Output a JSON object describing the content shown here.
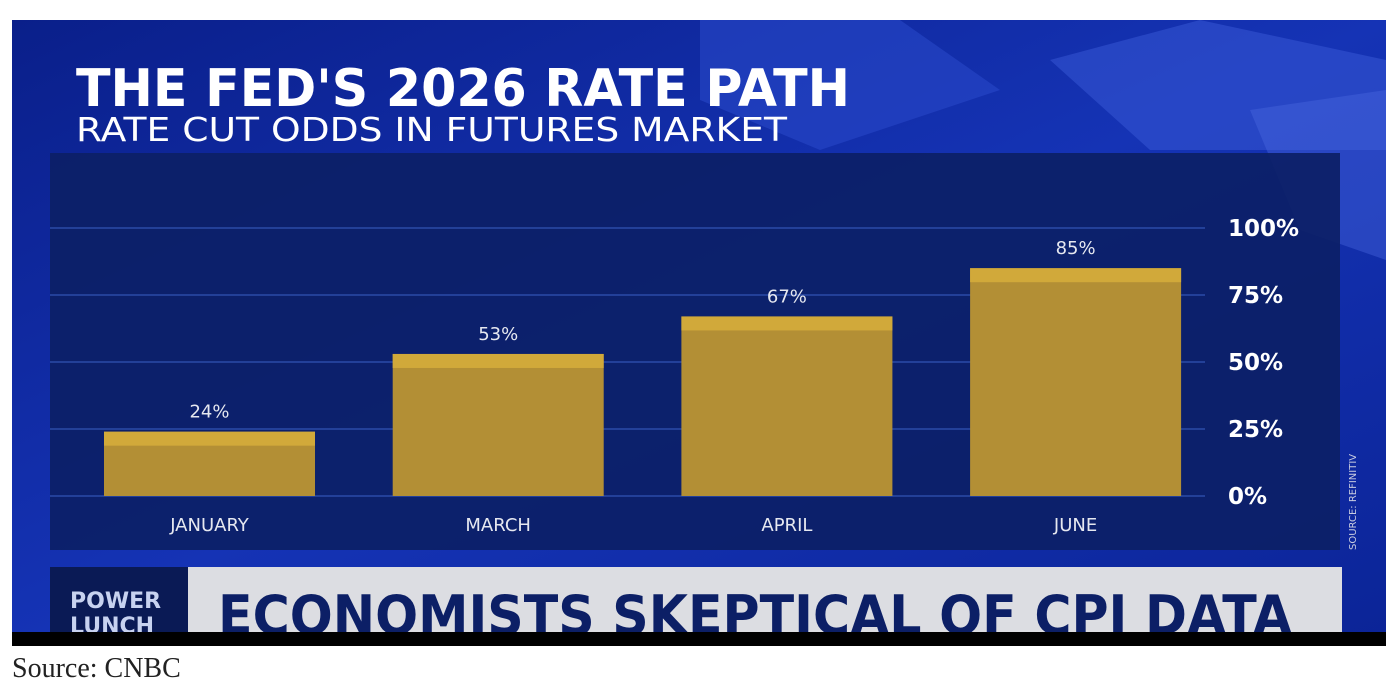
{
  "chart_data": {
    "type": "bar",
    "title": "THE FED'S 2026 RATE PATH",
    "subtitle": "RATE CUT ODDS IN FUTURES MARKET",
    "categories": [
      "JANUARY",
      "MARCH",
      "APRIL",
      "JUNE"
    ],
    "values": [
      24,
      53,
      67,
      85
    ],
    "value_labels": [
      "24%",
      "53%",
      "67%",
      "85%"
    ],
    "color": "#b38f35",
    "ylim": [
      0,
      100
    ],
    "yticks": [
      {
        "value": 0,
        "label": "0%"
      },
      {
        "value": 25,
        "label": "25%"
      },
      {
        "value": 50,
        "label": "50%"
      },
      {
        "value": 75,
        "label": "75%"
      },
      {
        "value": 100,
        "label": "100%"
      }
    ],
    "grid": true,
    "source": "SOURCE: REFINITIV"
  },
  "banner": {
    "show": [
      "POWER",
      "LUNCH"
    ],
    "headline": "ECONOMISTS SKEPTICAL OF CPI DATA"
  },
  "caption": "Source: CNBC"
}
